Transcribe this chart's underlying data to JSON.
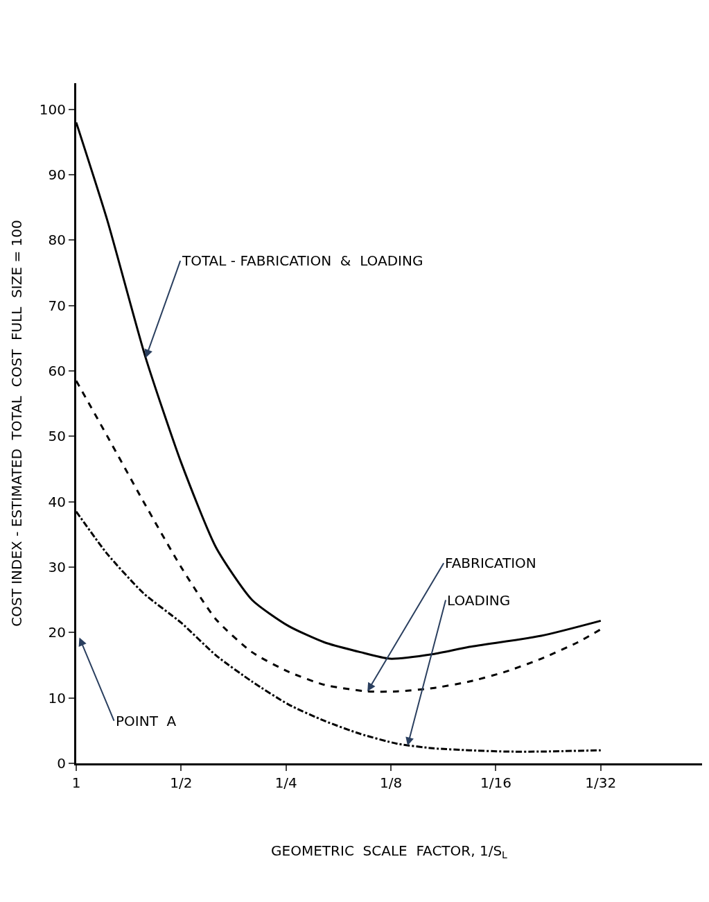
{
  "chart_data": {
    "type": "line",
    "xlabel": "GEOMETRIC  SCALE  FACTOR, 1/S$_{L}$",
    "ylabel": "COST INDEX - ESTIMATED  TOTAL  COST  FULL  SIZE = 100",
    "log": "x",
    "xlim": [
      1,
      0.016
    ],
    "xticks": [
      1,
      {
        "value": 0.5,
        "label": "1/2"
      },
      {
        "value": 0.25,
        "label": "1/4"
      },
      {
        "value": 0.125,
        "label": "1/8"
      },
      {
        "value": 0.0625,
        "label": "1/16"
      },
      {
        "value": 0.03125,
        "label": "1/32"
      }
    ],
    "ylim": [
      0,
      104
    ],
    "yticks": [
      0,
      10,
      20,
      30,
      40,
      50,
      60,
      70,
      80,
      90,
      100
    ],
    "legend": false,
    "marker": "none",
    "series": [
      {
        "color": "#000000",
        "line_style": "solid",
        "x": [
          1,
          0.814,
          0.632,
          0.5,
          0.397,
          0.313,
          0.246,
          0.194,
          0.153,
          0.126,
          0.0947,
          0.0745,
          0.0463,
          0.03125
        ],
        "values": [
          98,
          83,
          62,
          46,
          33,
          25,
          21,
          18.5,
          17,
          16,
          16.7,
          17.8,
          19.5,
          21.8
        ]
      },
      {
        "color": "#000000",
        "line_style": "dashed",
        "x": [
          1,
          0.814,
          0.641,
          0.5,
          0.397,
          0.313,
          0.246,
          0.194,
          0.146,
          0.12,
          0.0947,
          0.0745,
          0.0587,
          0.0463,
          0.0364,
          0.03125
        ],
        "values": [
          58.5,
          50,
          40,
          30,
          22,
          17,
          14,
          12,
          11,
          11,
          11.5,
          12.5,
          14,
          16,
          18.5,
          20.5
        ]
      },
      {
        "color": "#000000",
        "line_style": "dashdot",
        "x": [
          1,
          0.814,
          0.641,
          0.5,
          0.397,
          0.313,
          0.246,
          0.194,
          0.153,
          0.12,
          0.0947,
          0.0745,
          0.0587,
          0.0463,
          0.03125
        ],
        "values": [
          38.5,
          32,
          26,
          21.5,
          16.5,
          12.5,
          9,
          6.5,
          4.5,
          3,
          2.3,
          2,
          1.8,
          1.8,
          2
        ]
      }
    ],
    "annotations": [
      {
        "text": "TOTAL - FABRICATION  &  LOADING",
        "x": 0.632,
        "y": 62
      },
      {
        "text": "FABRICATION",
        "x": 0.146,
        "y": 11
      },
      {
        "text": "LOADING",
        "x": 0.112,
        "y": 2.7
      },
      "POINT  A"
    ]
  }
}
